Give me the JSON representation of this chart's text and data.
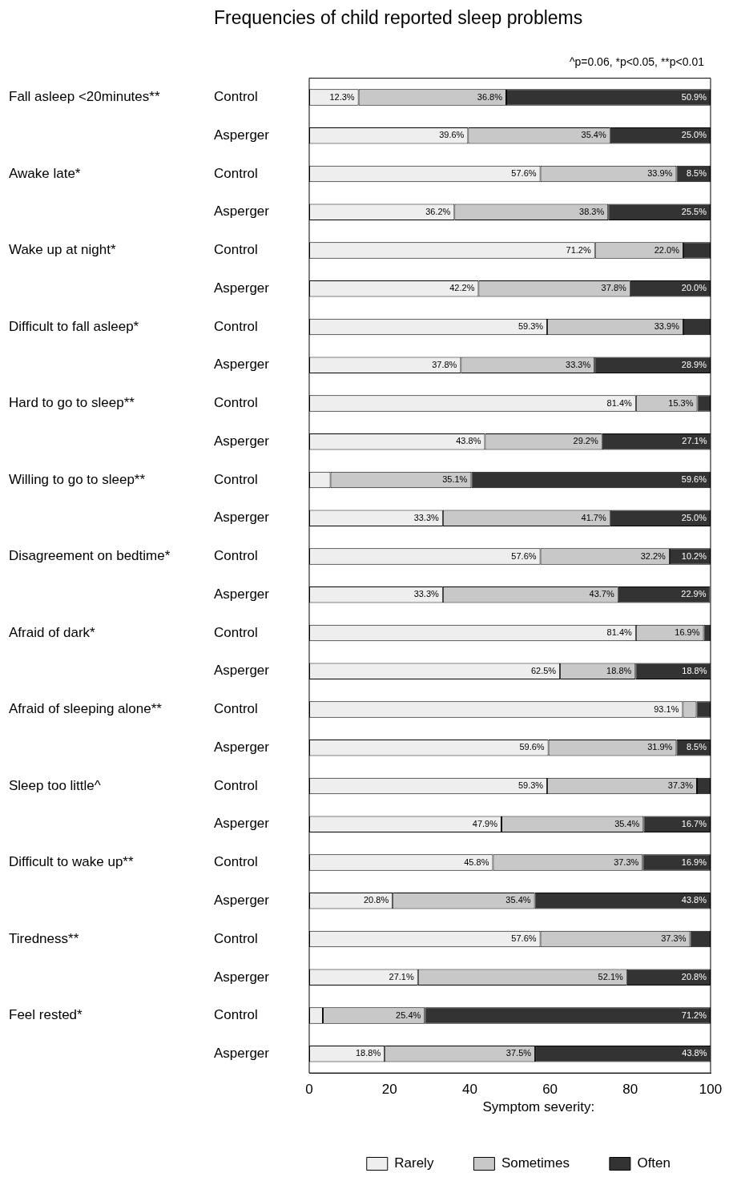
{
  "chart_data": {
    "type": "bar",
    "orientation": "horizontal",
    "stacked": true,
    "title": "Frequencies of child reported sleep problems",
    "legend_title": "Symptom severity:",
    "legend": "bottom",
    "grid": false,
    "annotations": [
      "^p=0.06, *p<0.05, **p<0.01",
      "Fall asleep <20minutes**",
      "Awake late*",
      "Wake up at night*",
      "Difficult to fall asleep*",
      "Hard to go to sleep**",
      "Willing to go to sleep**",
      "Disagreement on bedtime*",
      "Afraid of dark*",
      "Afraid of sleeping alone**",
      "Sleep too little^",
      "Difficult to wake up**",
      "Tiredness**",
      "Feel rested*"
    ],
    "categories": [
      "Control",
      "Asperger",
      "Control",
      "Asperger",
      "Control",
      "Asperger",
      "Control",
      "Asperger",
      "Control",
      "Asperger",
      "Control",
      "Asperger",
      "Control",
      "Asperger",
      "Control",
      "Asperger",
      "Control",
      "Asperger",
      "Control",
      "Asperger",
      "Control",
      "Asperger",
      "Control",
      "Asperger",
      "Control",
      "Asperger"
    ],
    "xlim": [
      0,
      100
    ],
    "xticks": [
      0,
      20,
      40,
      60,
      80,
      100
    ],
    "series": [
      {
        "name": "Rarely",
        "color": "#eeeeee",
        "values": [
          12.3,
          39.6,
          57.6,
          36.2,
          71.2,
          42.2,
          59.3,
          37.8,
          81.4,
          43.8,
          5.3,
          33.3,
          57.6,
          33.3,
          81.4,
          62.5,
          93.1,
          59.6,
          59.3,
          47.9,
          45.8,
          20.8,
          57.6,
          27.1,
          3.4,
          18.8
        ],
        "value_labels": [
          "12.3%",
          "39.6%",
          "57.6%",
          "36.2%",
          "71.2%",
          "42.2%",
          "59.3%",
          "37.8%",
          "81.4%",
          "43.8%",
          null,
          "33.3%",
          "57.6%",
          "33.3%",
          "81.4%",
          "62.5%",
          "93.1%",
          "59.6%",
          "59.3%",
          "47.9%",
          "45.8%",
          "20.8%",
          "57.6%",
          "27.1%",
          null,
          "18.8%"
        ]
      },
      {
        "name": "Sometimes",
        "color": "#c8c8c8",
        "values": [
          36.8,
          35.4,
          33.9,
          38.3,
          22.0,
          37.8,
          33.9,
          33.3,
          15.3,
          29.2,
          35.1,
          41.7,
          32.2,
          43.7,
          16.9,
          18.8,
          3.4,
          31.9,
          37.3,
          35.4,
          37.3,
          35.4,
          37.3,
          52.1,
          25.4,
          37.5
        ],
        "value_labels": [
          "36.8%",
          "35.4%",
          "33.9%",
          "38.3%",
          "22.0%",
          "37.8%",
          "33.9%",
          "33.3%",
          "15.3%",
          "29.2%",
          "35.1%",
          "41.7%",
          "32.2%",
          "43.7%",
          "16.9%",
          "18.8%",
          null,
          "31.9%",
          "37.3%",
          "35.4%",
          "37.3%",
          "35.4%",
          "37.3%",
          "52.1%",
          "25.4%",
          "37.5%"
        ]
      },
      {
        "name": "Often",
        "color": "#333333",
        "values": [
          50.9,
          25.0,
          8.5,
          25.5,
          6.8,
          20.0,
          6.8,
          28.9,
          3.3,
          27.1,
          59.6,
          25.0,
          10.2,
          22.9,
          1.7,
          18.8,
          3.5,
          8.5,
          3.4,
          16.7,
          16.9,
          43.8,
          5.1,
          20.8,
          71.2,
          43.8
        ],
        "value_labels": [
          "50.9%",
          "25.0%",
          "8.5%",
          "25.5%",
          null,
          "20.0%",
          null,
          "28.9%",
          null,
          "27.1%",
          "59.6%",
          "25.0%",
          "10.2%",
          "22.9%",
          null,
          "18.8%",
          null,
          "8.5%",
          null,
          "16.7%",
          "16.9%",
          "43.8%",
          null,
          "20.8%",
          "71.2%",
          "43.8%"
        ]
      }
    ]
  }
}
